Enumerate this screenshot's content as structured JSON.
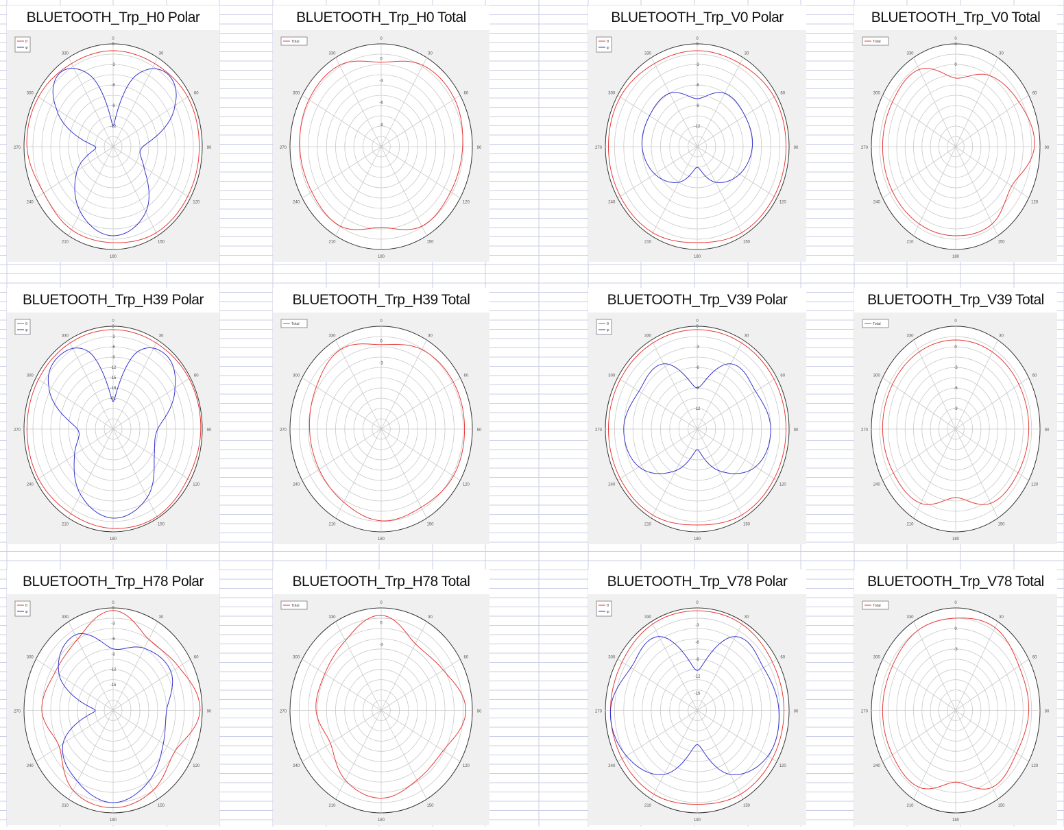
{
  "colors": {
    "theta": "#e53935",
    "phi": "#3333cc",
    "total": "#e53935",
    "grid": "#c8c8c8",
    "sheet_line": "#c9cde6",
    "plot_bg": "#f0f0f0"
  },
  "angle_labels": [
    "0",
    "30",
    "60",
    "90",
    "120",
    "150",
    "180",
    "210",
    "240",
    "270",
    "300",
    "330"
  ],
  "chart_data": [
    {
      "type": "polar",
      "title": "BLUETOOTH_Trp_H0 Polar",
      "legend": [
        "θ",
        "φ"
      ],
      "radial_ticks": [
        "0",
        "-3",
        "-6",
        "-9",
        "-12"
      ],
      "rmin": -15,
      "rmax": 0,
      "series": [
        {
          "name": "θ",
          "color_key": "theta",
          "angles": [
            0,
            30,
            60,
            90,
            120,
            150,
            180,
            210,
            240,
            270,
            300,
            330,
            360
          ],
          "values": [
            -1,
            -1,
            -0.5,
            -0.5,
            -0.5,
            -0.5,
            -1,
            -1,
            -1.5,
            -0.5,
            -0.5,
            -1,
            -1
          ]
        },
        {
          "name": "φ",
          "color_key": "phi",
          "angles": [
            0,
            20,
            40,
            60,
            90,
            120,
            150,
            180,
            210,
            240,
            270,
            300,
            320,
            340,
            360
          ],
          "values": [
            -12,
            -4,
            -1,
            -3,
            -10,
            -9,
            -4,
            -2,
            -4,
            -8,
            -12,
            -4,
            -1,
            -4,
            -12
          ]
        }
      ]
    },
    {
      "type": "polar",
      "title": "BLUETOOTH_Trp_H0 Total",
      "legend": [
        "Total"
      ],
      "radial_ticks": [
        "0",
        "-3",
        "-6",
        "-9"
      ],
      "rmin": -12,
      "rmax": 2,
      "series": [
        {
          "name": "Total",
          "color_key": "total",
          "angles": [
            0,
            30,
            60,
            90,
            120,
            150,
            180,
            210,
            240,
            270,
            300,
            330,
            360
          ],
          "values": [
            -0.5,
            0.8,
            1,
            0.5,
            0.3,
            0.5,
            -1,
            0.5,
            0.3,
            0.5,
            0.8,
            0.8,
            -0.5
          ]
        }
      ]
    },
    {
      "type": "polar",
      "title": "BLUETOOTH_Trp_V0 Polar",
      "legend": [
        "θ",
        "φ"
      ],
      "radial_ticks": [
        "0",
        "-3",
        "-6",
        "-9",
        "-12"
      ],
      "rmin": -15,
      "rmax": 0,
      "series": [
        {
          "name": "θ",
          "color_key": "theta",
          "angles": [
            0,
            30,
            60,
            90,
            120,
            150,
            180,
            210,
            240,
            270,
            300,
            330,
            360
          ],
          "values": [
            -1,
            -1,
            -0.5,
            -0.5,
            -0.5,
            -0.5,
            -1,
            -0.5,
            -0.5,
            -0.5,
            -0.5,
            -1,
            -1
          ]
        },
        {
          "name": "φ",
          "color_key": "phi",
          "angles": [
            0,
            30,
            60,
            90,
            120,
            150,
            180,
            210,
            240,
            270,
            300,
            330,
            360
          ],
          "values": [
            -8,
            -6,
            -6,
            -6,
            -7,
            -9,
            -12,
            -9,
            -7,
            -6,
            -6,
            -6,
            -8
          ]
        }
      ]
    },
    {
      "type": "polar",
      "title": "BLUETOOTH_Trp_V0 Total",
      "legend": [
        "Total"
      ],
      "radial_ticks": [
        "3",
        "0"
      ],
      "rmin": -12,
      "rmax": 3,
      "series": [
        {
          "name": "Total",
          "color_key": "total",
          "angles": [
            0,
            30,
            60,
            90,
            120,
            150,
            180,
            210,
            240,
            270,
            300,
            330,
            360
          ],
          "values": [
            -2,
            0,
            1,
            2,
            -0.5,
            1,
            1,
            1,
            1,
            1,
            1,
            1,
            -2
          ]
        }
      ]
    },
    {
      "type": "polar",
      "title": "BLUETOOTH_Trp_H39 Polar",
      "legend": [
        "θ",
        "φ"
      ],
      "radial_ticks": [
        "0",
        "-3",
        "-6",
        "-9",
        "-12",
        "-15",
        "-18",
        "-21"
      ],
      "rmin": -30,
      "rmax": 0,
      "series": [
        {
          "name": "θ",
          "color_key": "theta",
          "angles": [
            0,
            30,
            60,
            90,
            120,
            150,
            180,
            210,
            240,
            270,
            300,
            330,
            360
          ],
          "values": [
            -1,
            -1,
            -0.5,
            -0.5,
            -1,
            -0.5,
            -1,
            -1.5,
            -1,
            -1,
            -1,
            -1,
            -1
          ]
        },
        {
          "name": "φ",
          "color_key": "phi",
          "angles": [
            0,
            20,
            40,
            60,
            90,
            120,
            150,
            180,
            210,
            240,
            270,
            300,
            320,
            340,
            360
          ],
          "values": [
            -22,
            -6,
            -2,
            -6,
            -15,
            -14,
            -7,
            -4,
            -8,
            -15,
            -18,
            -5,
            -2,
            -6,
            -22
          ]
        }
      ]
    },
    {
      "type": "polar",
      "title": "BLUETOOTH_Trp_H39 Total",
      "legend": [
        "Total"
      ],
      "radial_ticks": [
        "0",
        "-3"
      ],
      "rmin": -12,
      "rmax": 2,
      "series": [
        {
          "name": "Total",
          "color_key": "total",
          "angles": [
            0,
            30,
            60,
            90,
            120,
            150,
            180,
            210,
            240,
            270,
            300,
            330,
            360
          ],
          "values": [
            -0.5,
            0.5,
            0.8,
            0.8,
            0.8,
            0.3,
            0.5,
            -0.5,
            -1,
            -1,
            -0.5,
            0.5,
            -0.5
          ]
        }
      ]
    },
    {
      "type": "polar",
      "title": "BLUETOOTH_Trp_V39 Polar",
      "legend": [
        "θ",
        "φ"
      ],
      "radial_ticks": [
        "0",
        "-3",
        "-6",
        "-9",
        "-12"
      ],
      "rmin": -15,
      "rmax": 0,
      "series": [
        {
          "name": "θ",
          "color_key": "theta",
          "angles": [
            0,
            30,
            60,
            90,
            120,
            150,
            180,
            210,
            240,
            270,
            300,
            330,
            360
          ],
          "values": [
            -0.5,
            -0.5,
            -0.5,
            -0.5,
            -0.5,
            -0.5,
            -1,
            -0.5,
            -0.5,
            -0.5,
            -0.5,
            -0.5,
            -0.5
          ]
        },
        {
          "name": "φ",
          "color_key": "phi",
          "angles": [
            0,
            30,
            60,
            90,
            120,
            150,
            180,
            210,
            240,
            270,
            300,
            330,
            360
          ],
          "values": [
            -9,
            -4,
            -4,
            -3,
            -4,
            -8,
            -12,
            -8,
            -4,
            -3,
            -4,
            -4,
            -9
          ]
        }
      ]
    },
    {
      "type": "polar",
      "title": "BLUETOOTH_Trp_V39 Total",
      "legend": [
        "Total"
      ],
      "radial_ticks": [
        "0",
        "-3",
        "-6",
        "-9"
      ],
      "rmin": -12,
      "rmax": 3,
      "series": [
        {
          "name": "Total",
          "color_key": "total",
          "angles": [
            0,
            30,
            60,
            90,
            120,
            150,
            180,
            210,
            240,
            270,
            300,
            330,
            360
          ],
          "values": [
            1,
            1,
            1,
            1,
            0.8,
            0.5,
            -2,
            0.5,
            0.8,
            1,
            1,
            1,
            1
          ]
        }
      ]
    },
    {
      "type": "polar",
      "title": "BLUETOOTH_Trp_H78 Polar",
      "legend": [
        "θ",
        "φ"
      ],
      "radial_ticks": [
        "0",
        "-3",
        "-6",
        "-9",
        "-12",
        "-15"
      ],
      "rmin": -20,
      "rmax": 0,
      "series": [
        {
          "name": "θ",
          "color_key": "theta",
          "angles": [
            0,
            30,
            60,
            90,
            120,
            150,
            180,
            210,
            240,
            270,
            300,
            330,
            360
          ],
          "values": [
            -0.5,
            -4,
            -3,
            -0.5,
            -4,
            -2,
            -1,
            -2,
            -6,
            -4,
            -5,
            -4,
            -0.5
          ]
        },
        {
          "name": "φ",
          "color_key": "phi",
          "angles": [
            0,
            30,
            60,
            90,
            120,
            150,
            180,
            210,
            240,
            270,
            300,
            330,
            360
          ],
          "values": [
            -8,
            -6,
            -5,
            -8,
            -7,
            -4,
            -2,
            -4,
            -7,
            -16,
            -6,
            -3,
            -8
          ]
        }
      ]
    },
    {
      "type": "polar",
      "title": "BLUETOOTH_Trp_H78 Total",
      "legend": [
        "Total"
      ],
      "radial_ticks": [
        "0",
        "-3"
      ],
      "rmin": -12,
      "rmax": 2,
      "series": [
        {
          "name": "Total",
          "color_key": "total",
          "angles": [
            0,
            30,
            60,
            90,
            120,
            150,
            180,
            210,
            240,
            270,
            300,
            330,
            360
          ],
          "values": [
            1,
            -1.5,
            -1,
            1,
            -1,
            -1,
            0,
            -1,
            -3,
            -2,
            -2,
            -1,
            1
          ]
        }
      ]
    },
    {
      "type": "polar",
      "title": "BLUETOOTH_Trp_V78 Polar",
      "legend": [
        "θ",
        "φ"
      ],
      "radial_ticks": [
        "-3",
        "-6",
        "-9",
        "-12",
        "-15"
      ],
      "rmin": -18,
      "rmax": 0,
      "series": [
        {
          "name": "θ",
          "color_key": "theta",
          "angles": [
            0,
            30,
            60,
            90,
            120,
            150,
            180,
            210,
            240,
            270,
            300,
            330,
            360
          ],
          "values": [
            -0.5,
            -0.5,
            -1,
            -1,
            -1,
            -1,
            -1.5,
            -1,
            -1,
            -1,
            -1,
            -0.5,
            -0.5
          ]
        },
        {
          "name": "φ",
          "color_key": "phi",
          "angles": [
            0,
            30,
            60,
            90,
            120,
            150,
            180,
            210,
            240,
            270,
            300,
            330,
            360
          ],
          "values": [
            -11,
            -3,
            -3,
            -2,
            -2,
            -5,
            -12,
            -5,
            -2,
            -1,
            -3,
            -3,
            -11
          ]
        }
      ]
    },
    {
      "type": "polar",
      "title": "BLUETOOTH_Trp_V78 Total",
      "legend": [
        "Total"
      ],
      "radial_ticks": [
        "0",
        "-3"
      ],
      "rmin": -12,
      "rmax": 3,
      "series": [
        {
          "name": "Total",
          "color_key": "total",
          "angles": [
            0,
            30,
            60,
            90,
            120,
            150,
            180,
            210,
            240,
            270,
            300,
            330,
            360
          ],
          "values": [
            1.5,
            2,
            1,
            1,
            0.5,
            1,
            -1.5,
            1,
            1,
            1,
            1,
            1.5,
            1.5
          ]
        }
      ]
    }
  ]
}
